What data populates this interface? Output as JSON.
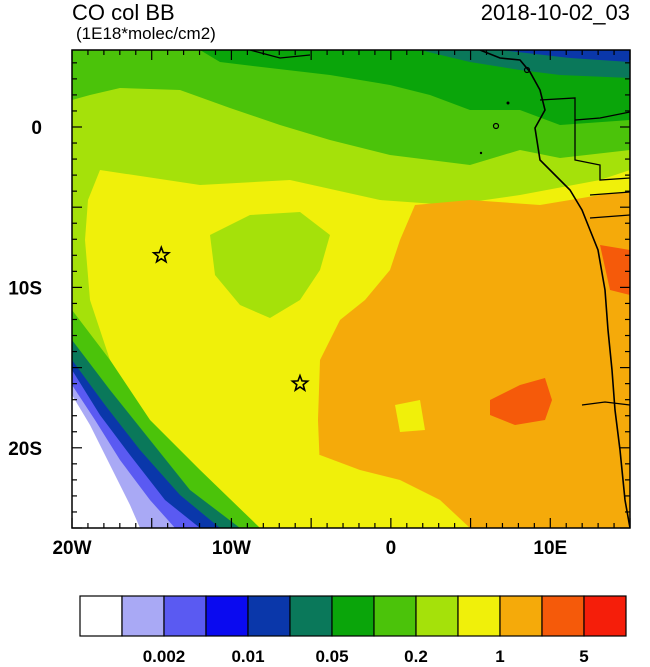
{
  "header": {
    "title": "CO col BB",
    "units": "(1E18*molec/cm2)",
    "timestamp": "2018-10-02_03"
  },
  "map": {
    "lon_ticks": [
      {
        "value": -20,
        "label": "20W"
      },
      {
        "value": -10,
        "label": "10W"
      },
      {
        "value": 0,
        "label": "0"
      },
      {
        "value": 10,
        "label": "10E"
      }
    ],
    "lat_ticks": [
      {
        "value": 0,
        "label": "0"
      },
      {
        "value": -10,
        "label": "10S"
      },
      {
        "value": -20,
        "label": "20S"
      }
    ],
    "lon_range": [
      -20,
      15
    ],
    "lat_range": [
      -25,
      4.8
    ],
    "stations": [
      {
        "name": "station-star-1",
        "lon": -14.4,
        "lat": -8.0
      },
      {
        "name": "station-star-2",
        "lon": -5.7,
        "lat": -16.0
      }
    ]
  },
  "colorbar": {
    "colors": [
      "#ffffff",
      "#a9a9f5",
      "#5a5af2",
      "#0a0af0",
      "#0a37aa",
      "#0a785a",
      "#0aa50a",
      "#4bc30a",
      "#a5e10a",
      "#f0f00a",
      "#f5aa0a",
      "#f55a0a",
      "#f51e0a"
    ],
    "labels": [
      {
        "after_box": 2,
        "text": "0.002"
      },
      {
        "after_box": 4,
        "text": "0.01"
      },
      {
        "after_box": 6,
        "text": "0.05"
      },
      {
        "after_box": 8,
        "text": "0.2"
      },
      {
        "after_box": 10,
        "text": "1"
      },
      {
        "after_box": 12,
        "text": "5"
      }
    ]
  }
}
